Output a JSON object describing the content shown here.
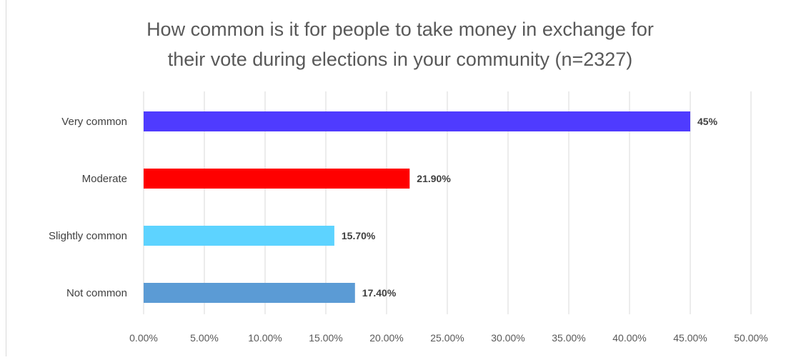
{
  "chart_data": {
    "type": "bar",
    "orientation": "horizontal",
    "title_lines": [
      "How common is it for people to take money in exchange for",
      "their vote during elections in your community (n=2327)"
    ],
    "categories": [
      "Very common",
      "Moderate",
      "Slightly common",
      "Not common"
    ],
    "values": [
      45,
      21.9,
      15.7,
      17.4
    ],
    "data_labels": [
      "45%",
      "21.90%",
      "15.70%",
      "17.40%"
    ],
    "colors": [
      "#4f3bff",
      "#ff0000",
      "#5dd3ff",
      "#5b9bd5"
    ],
    "xlim": [
      0,
      50
    ],
    "x_ticks": [
      "0.00%",
      "5.00%",
      "10.00%",
      "15.00%",
      "20.00%",
      "25.00%",
      "30.00%",
      "35.00%",
      "40.00%",
      "45.00%",
      "50.00%"
    ],
    "grid": true,
    "legend": "none"
  }
}
